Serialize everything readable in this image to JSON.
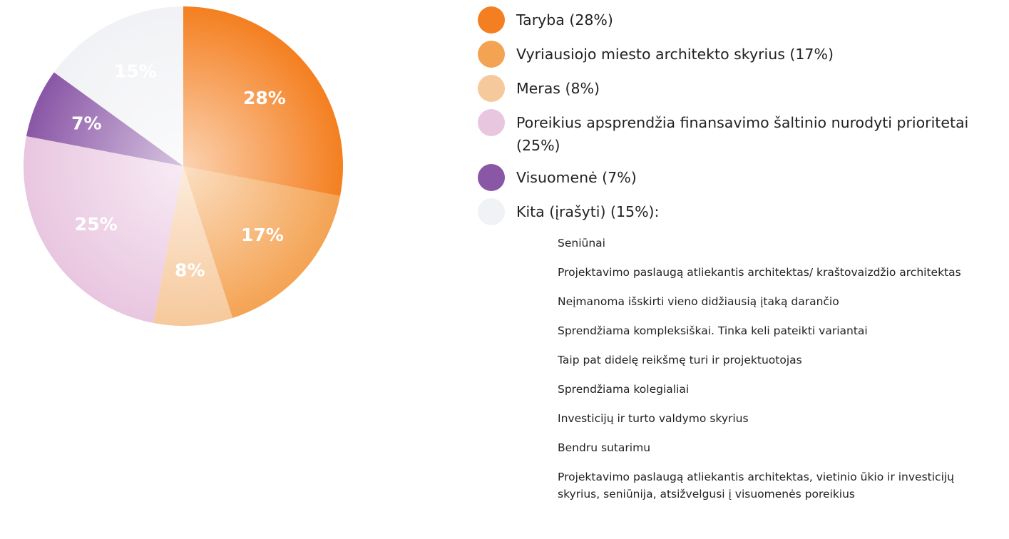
{
  "chart_data": {
    "type": "pie",
    "categories": [
      "Taryba (28%)",
      "Vyriausiojo miesto architekto skyrius (17%)",
      "Meras (8%)",
      "Poreikius apsprendžia finansavimo šaltinio nurodyti prioritetai (25%)",
      "Visuomenė (7%)",
      "Kita (įrašyti) (15%):"
    ],
    "values": [
      28,
      17,
      8,
      25,
      7,
      15
    ],
    "value_labels": [
      "28%",
      "17%",
      "8%",
      "25%",
      "7%",
      "15%"
    ],
    "colors": [
      "#f47f20",
      "#f4a353",
      "#f6c99c",
      "#e9c6e0",
      "#8a56a6",
      "#f1f2f5"
    ],
    "other_answers": [
      "Seniūnai",
      "Projektavimo paslaugą atliekantis architektas/ kraštovaizdžio architektas",
      "Neįmanoma išskirti vieno didžiausią įtaką darančio",
      "Sprendžiama kompleksiškai. Tinka keli pateikti variantai",
      "Taip pat didelę reikšmę turi ir projektuotojas",
      "Sprendžiama kolegialiai",
      "Investicijų ir turto valdymo skyrius",
      "Bendru sutarimu",
      "Projektavimo paslaugą atliekantis architektas, vietinio ūkio ir investicijų skyrius, seniūnija, atsižvelgusi į visuomenės poreikius"
    ]
  }
}
